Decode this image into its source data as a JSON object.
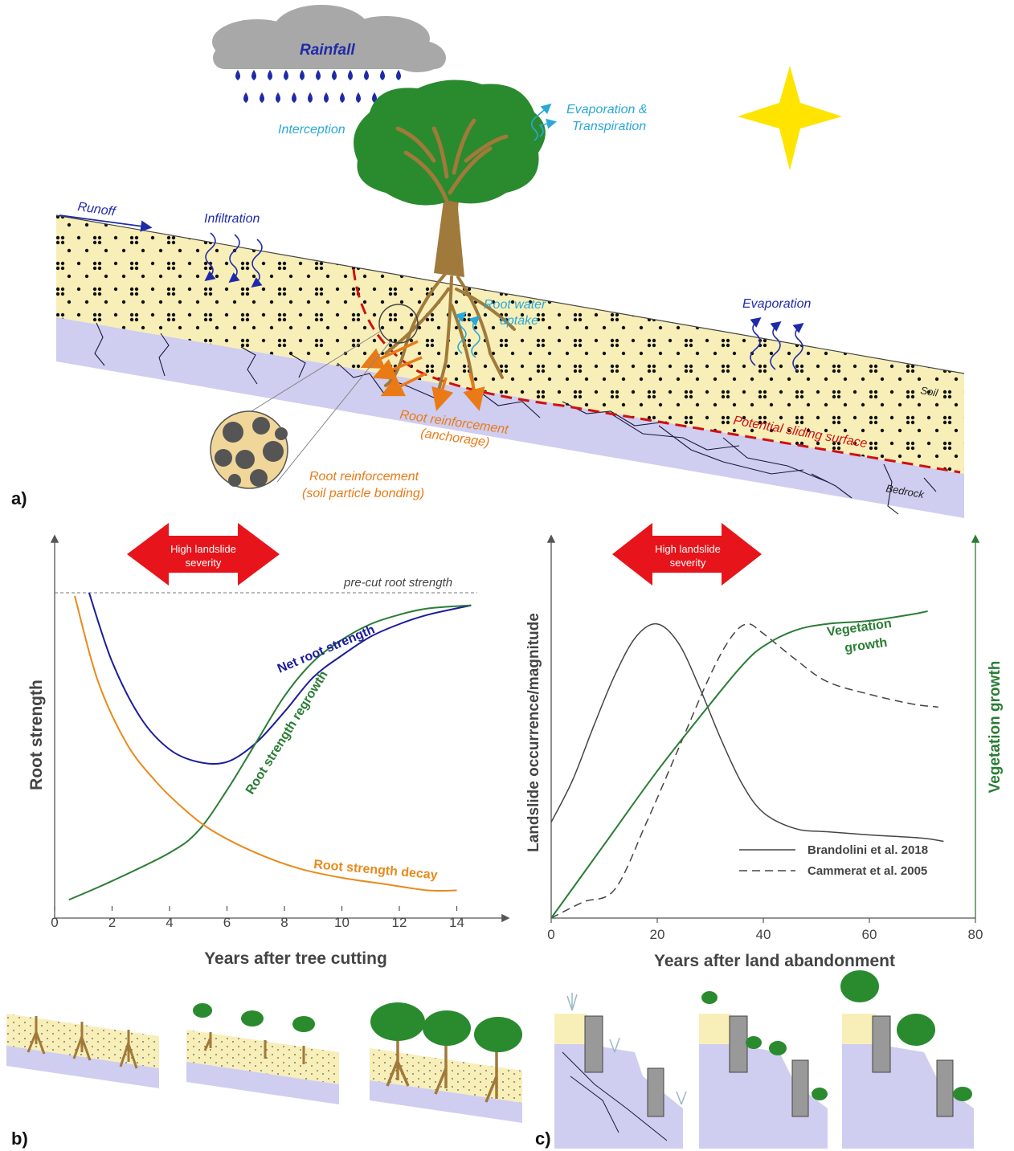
{
  "panel_a": {
    "label": "a)",
    "rainfall": "Rainfall",
    "interception": "Interception",
    "evap_transp_1": "Evaporation &",
    "evap_transp_2": "Transpiration",
    "runoff": "Runoff",
    "infiltration": "Infiltration",
    "root_water_uptake_1": "Root water",
    "root_water_uptake_2": "uptake",
    "evaporation": "Evaporation",
    "soil": "Soil",
    "bedrock": "Bedrock",
    "sliding_surface": "Potential sliding surface",
    "anchorage_1": "Root reinforcement",
    "anchorage_2": "(anchorage)",
    "bonding_1": "Root reinforcement",
    "bonding_2": "(soil particle bonding)"
  },
  "panel_b": {
    "label": "b)",
    "arrow_1": "High landslide",
    "arrow_2": "severity",
    "pre_cut": "pre-cut root strength",
    "net": "Net root strength",
    "regrowth": "Root strength regrowth",
    "decay": "Root strength decay",
    "ylabel": "Root strength",
    "xlabel": "Years after tree cutting"
  },
  "panel_c": {
    "label": "c)",
    "arrow_1": "High landslide",
    "arrow_2": "severity",
    "veg_1": "Vegetation",
    "veg_2": "growth",
    "ylabel_left": "Landslide occurrence/magnitude",
    "ylabel_right": "Vegetation growth",
    "xlabel": "Years after land abandonment",
    "legend_solid": "Brandolini et al. 2018",
    "legend_dashed": "Cammerat et al. 2005"
  },
  "colors": {
    "soil": "#f8efb8",
    "bedrock": "#cfcdf0",
    "foliage": "#2a8a2e",
    "trunk": "#a07a3a",
    "blue_text": "#1f2aa8",
    "cyan": "#2aa8d8",
    "orange": "#ea7a16",
    "red": "#d01010",
    "sun": "#ffe400",
    "net_curve": "#1c1c9c",
    "regrowth_curve": "#2a7d34",
    "decay_curve": "#e88a1c"
  },
  "chart_data": [
    {
      "type": "line",
      "xlabel": "Years after tree cutting",
      "ylabel": "Root strength",
      "xlim": [
        0,
        16
      ],
      "xticks": [
        0,
        2,
        4,
        6,
        8,
        10,
        12,
        14
      ],
      "reference_line": "pre-cut root strength",
      "series": [
        {
          "name": "Net root strength",
          "x": [
            1.2,
            2,
            3,
            4,
            5,
            6,
            7,
            8,
            9,
            10,
            11,
            12,
            13,
            14.5
          ],
          "y": [
            1.0,
            0.78,
            0.6,
            0.5,
            0.46,
            0.46,
            0.52,
            0.62,
            0.73,
            0.8,
            0.86,
            0.9,
            0.93,
            0.96
          ]
        },
        {
          "name": "Root strength regrowth",
          "x": [
            0.5,
            2,
            4,
            5,
            6,
            7,
            8,
            9,
            10,
            11,
            12,
            13,
            14.5
          ],
          "y": [
            0.02,
            0.08,
            0.17,
            0.24,
            0.37,
            0.52,
            0.67,
            0.78,
            0.85,
            0.9,
            0.93,
            0.95,
            0.96
          ]
        },
        {
          "name": "Root strength decay",
          "x": [
            0.7,
            1.5,
            2.5,
            3.5,
            4.5,
            5.5,
            7,
            8.5,
            10,
            11.5,
            13,
            14
          ],
          "y": [
            0.99,
            0.72,
            0.52,
            0.4,
            0.31,
            0.24,
            0.17,
            0.12,
            0.09,
            0.07,
            0.05,
            0.05
          ]
        }
      ]
    },
    {
      "type": "line",
      "xlabel": "Years after land abandonment",
      "ylabel": "Landslide occurrence/magnitude",
      "y2label": "Vegetation growth",
      "xlim": [
        0,
        80
      ],
      "xticks": [
        0,
        20,
        40,
        60,
        80
      ],
      "series": [
        {
          "name": "Brandolini et al. 2018",
          "x": [
            0,
            4,
            8,
            12,
            16,
            20,
            24,
            28,
            32,
            36,
            40,
            46,
            52,
            60,
            70,
            74
          ],
          "y": [
            0.3,
            0.43,
            0.6,
            0.76,
            0.88,
            0.92,
            0.86,
            0.72,
            0.56,
            0.42,
            0.33,
            0.28,
            0.27,
            0.26,
            0.25,
            0.24
          ]
        },
        {
          "name": "Cammerat et al. 2005",
          "x": [
            0,
            6,
            12,
            18,
            24,
            30,
            34,
            37,
            40,
            46,
            52,
            60,
            68,
            73
          ],
          "y": [
            0.0,
            0.05,
            0.09,
            0.3,
            0.53,
            0.76,
            0.88,
            0.92,
            0.89,
            0.81,
            0.74,
            0.7,
            0.67,
            0.66
          ]
        },
        {
          "name": "Vegetation growth",
          "x": [
            0,
            10,
            20,
            30,
            36,
            40,
            46,
            52,
            60,
            68,
            71
          ],
          "y": [
            0.0,
            0.23,
            0.46,
            0.67,
            0.79,
            0.85,
            0.9,
            0.92,
            0.93,
            0.95,
            0.96
          ]
        }
      ]
    }
  ]
}
